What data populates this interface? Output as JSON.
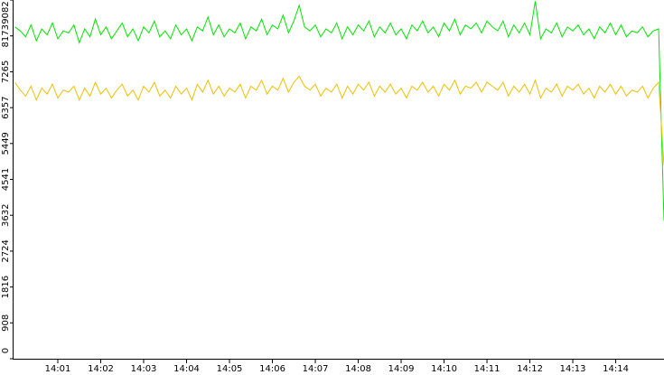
{
  "chart_data": {
    "type": "line",
    "categories": [
      null,
      null,
      null,
      null,
      null,
      null,
      null,
      null,
      "14:01",
      null,
      null,
      null,
      null,
      null,
      null,
      null,
      "14:02",
      null,
      null,
      null,
      null,
      null,
      null,
      null,
      "14:03",
      null,
      null,
      null,
      null,
      null,
      null,
      null,
      "14:04",
      null,
      null,
      null,
      null,
      null,
      null,
      null,
      "14:05",
      null,
      null,
      null,
      null,
      null,
      null,
      null,
      "14:06",
      null,
      null,
      null,
      null,
      null,
      null,
      null,
      "14:07",
      null,
      null,
      null,
      null,
      null,
      null,
      null,
      "14:08",
      null,
      null,
      null,
      null,
      null,
      null,
      null,
      "14:09",
      null,
      null,
      null,
      null,
      null,
      null,
      null,
      "14:10",
      null,
      null,
      null,
      null,
      null,
      null,
      null,
      "14:11",
      null,
      null,
      null,
      null,
      null,
      null,
      null,
      "14:12",
      null,
      null,
      null,
      null,
      null,
      null,
      null,
      "14:13",
      null,
      null,
      null,
      null,
      null,
      null,
      null,
      "14:14",
      null,
      null,
      null,
      null,
      null,
      null,
      null,
      null,
      null
    ],
    "series": [
      {
        "color": "#00e600",
        "values": [
          8400,
          8300,
          8150,
          8450,
          8050,
          8350,
          8200,
          8500,
          8100,
          8300,
          8250,
          8450,
          8000,
          8350,
          8150,
          8600,
          8200,
          8400,
          8100,
          8300,
          8500,
          8150,
          8350,
          8050,
          8400,
          8250,
          8550,
          8150,
          8300,
          8100,
          8450,
          8200,
          8350,
          8050,
          8400,
          8300,
          8650,
          8200,
          8450,
          8150,
          8350,
          8250,
          8500,
          8100,
          8400,
          8300,
          8600,
          8200,
          8450,
          8350,
          8700,
          8250,
          8550,
          8950,
          8400,
          8300,
          8450,
          8150,
          8350,
          8250,
          8500,
          8100,
          8400,
          8200,
          8450,
          8300,
          8550,
          8150,
          8400,
          8250,
          8500,
          8200,
          8350,
          8100,
          8450,
          8300,
          8550,
          8250,
          8400,
          8150,
          8500,
          8300,
          8600,
          8200,
          8450,
          8350,
          8500,
          8250,
          8550,
          8400,
          8300,
          8550,
          8150,
          8450,
          8250,
          8500,
          8200,
          9050,
          8100,
          8350,
          8250,
          8500,
          8150,
          8400,
          8300,
          8450,
          8200,
          8350,
          8100,
          8400,
          8250,
          8500,
          8200,
          8450,
          8150,
          8300,
          8250,
          8400,
          8150,
          8300,
          8350,
          3500
        ]
      },
      {
        "color": "#f0c000",
        "values": [
          7000,
          6800,
          6650,
          6900,
          6550,
          6850,
          6700,
          6950,
          6600,
          6800,
          6750,
          6900,
          6550,
          6850,
          6650,
          7000,
          6700,
          6850,
          6600,
          6800,
          6950,
          6650,
          6800,
          6550,
          6900,
          6750,
          7000,
          6650,
          6800,
          6600,
          6900,
          6700,
          6850,
          6550,
          6950,
          6750,
          7050,
          6700,
          6900,
          6650,
          6850,
          6750,
          6950,
          6600,
          6900,
          6800,
          7050,
          6700,
          6900,
          6800,
          7100,
          6750,
          7000,
          7150,
          6900,
          6800,
          6950,
          6650,
          6850,
          6750,
          6950,
          6600,
          6900,
          6700,
          6950,
          6800,
          7000,
          6650,
          6900,
          6750,
          6950,
          6700,
          6850,
          6600,
          6900,
          6800,
          7000,
          6750,
          6900,
          6650,
          6950,
          6800,
          7050,
          6700,
          6900,
          6850,
          7000,
          6750,
          7000,
          6900,
          6800,
          7000,
          6650,
          6900,
          6750,
          6950,
          6700,
          7050,
          6600,
          6850,
          6750,
          6950,
          6650,
          6900,
          6800,
          6950,
          6700,
          6850,
          6600,
          6900,
          6750,
          6950,
          6700,
          6900,
          6650,
          6800,
          6750,
          6900,
          6600,
          6850,
          7000,
          4900
        ]
      }
    ],
    "ylim": [
      0,
      9082
    ],
    "yticks": [
      0,
      908,
      1816,
      2724,
      3632,
      4541,
      5449,
      6357,
      7265,
      8173,
      9082
    ],
    "grid": false
  }
}
